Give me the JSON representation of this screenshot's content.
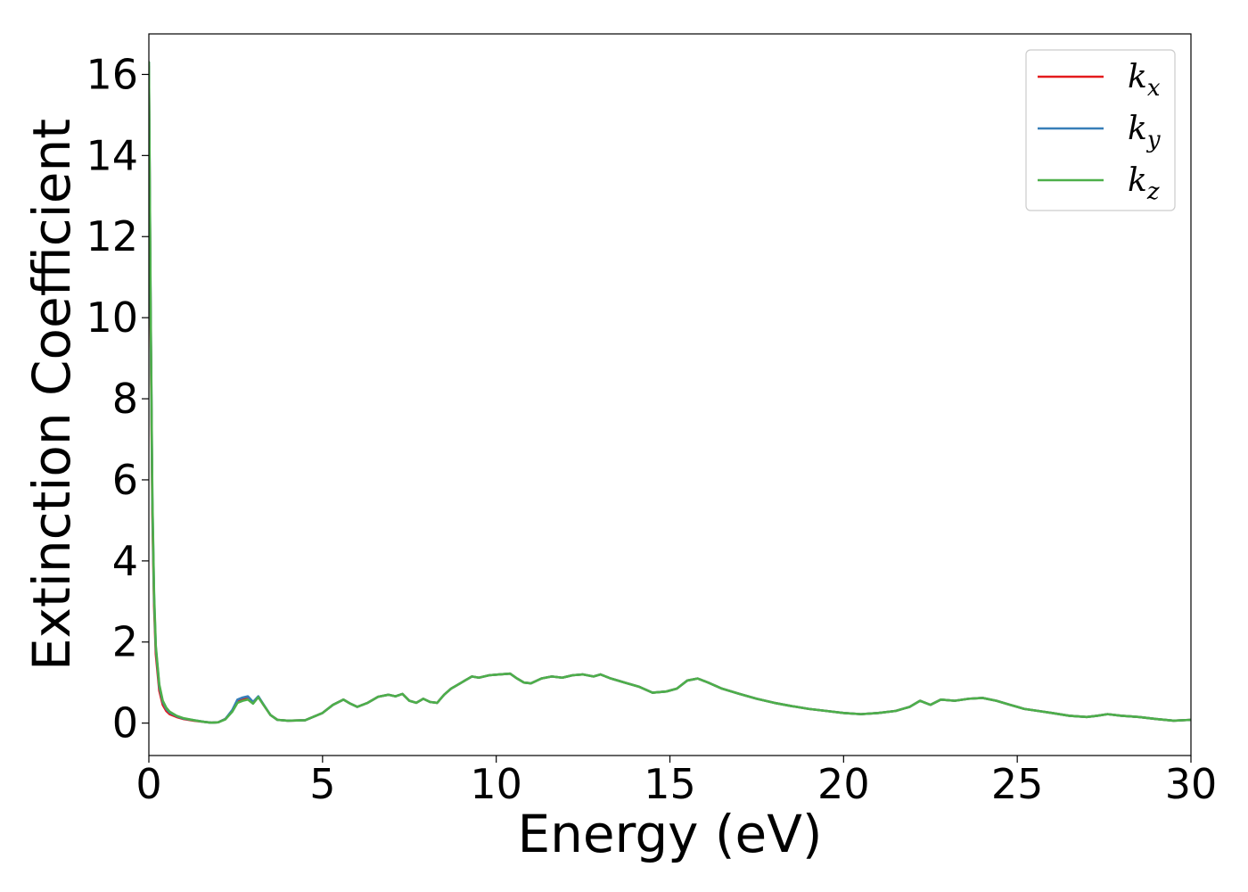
{
  "chart_data": {
    "type": "line",
    "title": "",
    "xlabel": "Energy (eV)",
    "ylabel": "Extinction Coefficient",
    "xlim": [
      0,
      30
    ],
    "ylim": [
      -0.8,
      17.0
    ],
    "xticks": [
      0,
      5,
      10,
      15,
      20,
      25,
      30
    ],
    "yticks": [
      0,
      2,
      4,
      6,
      8,
      10,
      12,
      14,
      16
    ],
    "grid": false,
    "legend_position": "top-right",
    "series": [
      {
        "name": "k",
        "subscript": "x",
        "color": "#e41a1c",
        "x": [
          0.0,
          0.05,
          0.1,
          0.15,
          0.2,
          0.3,
          0.4,
          0.5,
          0.6,
          0.8,
          1.0,
          1.3,
          1.6,
          1.8,
          2.0,
          2.2,
          2.4,
          2.55,
          2.7,
          2.85,
          3.0,
          3.15,
          3.3,
          3.5,
          3.7,
          4.0,
          4.5,
          5.0,
          5.3,
          5.6,
          5.8,
          6.0,
          6.3,
          6.6,
          6.9,
          7.1,
          7.3,
          7.5,
          7.7,
          7.9,
          8.1,
          8.3,
          8.5,
          8.7,
          8.9,
          9.1,
          9.3,
          9.5,
          9.8,
          10.1,
          10.4,
          10.6,
          10.8,
          11.0,
          11.3,
          11.6,
          11.9,
          12.2,
          12.5,
          12.8,
          13.0,
          13.3,
          13.7,
          14.1,
          14.5,
          14.9,
          15.2,
          15.5,
          15.8,
          16.1,
          16.5,
          17.0,
          17.5,
          18.0,
          18.5,
          19.0,
          19.5,
          20.0,
          20.5,
          21.0,
          21.5,
          21.9,
          22.2,
          22.5,
          22.8,
          23.2,
          23.6,
          24.0,
          24.4,
          24.8,
          25.2,
          25.6,
          26.0,
          26.5,
          27.0,
          27.3,
          27.6,
          28.0,
          28.5,
          29.0,
          29.5,
          30.0
        ],
        "y": [
          16.2,
          10.0,
          5.2,
          2.9,
          1.7,
          0.8,
          0.45,
          0.3,
          0.22,
          0.15,
          0.1,
          0.06,
          0.03,
          0.01,
          0.02,
          0.1,
          0.3,
          0.55,
          0.6,
          0.62,
          0.5,
          0.65,
          0.45,
          0.2,
          0.08,
          0.06,
          0.07,
          0.25,
          0.45,
          0.58,
          0.48,
          0.4,
          0.5,
          0.65,
          0.7,
          0.66,
          0.72,
          0.55,
          0.5,
          0.6,
          0.52,
          0.5,
          0.7,
          0.85,
          0.95,
          1.05,
          1.15,
          1.12,
          1.18,
          1.2,
          1.22,
          1.1,
          1.0,
          0.98,
          1.1,
          1.15,
          1.12,
          1.18,
          1.2,
          1.15,
          1.2,
          1.1,
          1.0,
          0.9,
          0.75,
          0.78,
          0.85,
          1.05,
          1.1,
          1.0,
          0.85,
          0.72,
          0.6,
          0.5,
          0.42,
          0.35,
          0.3,
          0.25,
          0.22,
          0.25,
          0.3,
          0.4,
          0.55,
          0.45,
          0.58,
          0.55,
          0.6,
          0.62,
          0.55,
          0.45,
          0.35,
          0.3,
          0.25,
          0.18,
          0.15,
          0.18,
          0.22,
          0.18,
          0.15,
          0.1,
          0.06,
          0.08
        ]
      },
      {
        "name": "k",
        "subscript": "y",
        "color": "#377eb8",
        "x": [
          0.0,
          0.05,
          0.1,
          0.15,
          0.2,
          0.3,
          0.4,
          0.5,
          0.6,
          0.8,
          1.0,
          1.3,
          1.6,
          1.8,
          2.0,
          2.2,
          2.4,
          2.55,
          2.7,
          2.85,
          3.0,
          3.15,
          3.3,
          3.5,
          3.7,
          4.0,
          4.5,
          5.0,
          5.3,
          5.6,
          5.8,
          6.0,
          6.3,
          6.6,
          6.9,
          7.1,
          7.3,
          7.5,
          7.7,
          7.9,
          8.1,
          8.3,
          8.5,
          8.7,
          8.9,
          9.1,
          9.3,
          9.5,
          9.8,
          10.1,
          10.4,
          10.6,
          10.8,
          11.0,
          11.3,
          11.6,
          11.9,
          12.2,
          12.5,
          12.8,
          13.0,
          13.3,
          13.7,
          14.1,
          14.5,
          14.9,
          15.2,
          15.5,
          15.8,
          16.1,
          16.5,
          17.0,
          17.5,
          18.0,
          18.5,
          19.0,
          19.5,
          20.0,
          20.5,
          21.0,
          21.5,
          21.9,
          22.2,
          22.5,
          22.8,
          23.2,
          23.6,
          24.0,
          24.4,
          24.8,
          25.2,
          25.6,
          26.0,
          26.5,
          27.0,
          27.3,
          27.6,
          28.0,
          28.5,
          29.0,
          29.5,
          30.0
        ],
        "y": [
          16.3,
          10.3,
          5.5,
          3.1,
          1.85,
          0.9,
          0.52,
          0.35,
          0.26,
          0.17,
          0.11,
          0.07,
          0.03,
          0.01,
          0.02,
          0.1,
          0.32,
          0.58,
          0.63,
          0.66,
          0.52,
          0.66,
          0.46,
          0.2,
          0.08,
          0.06,
          0.07,
          0.25,
          0.45,
          0.58,
          0.48,
          0.4,
          0.5,
          0.65,
          0.7,
          0.66,
          0.72,
          0.55,
          0.5,
          0.6,
          0.52,
          0.5,
          0.7,
          0.85,
          0.95,
          1.05,
          1.15,
          1.12,
          1.18,
          1.2,
          1.22,
          1.1,
          1.0,
          0.98,
          1.1,
          1.15,
          1.12,
          1.18,
          1.2,
          1.15,
          1.2,
          1.1,
          1.0,
          0.9,
          0.75,
          0.78,
          0.85,
          1.05,
          1.1,
          1.0,
          0.85,
          0.72,
          0.6,
          0.5,
          0.42,
          0.35,
          0.3,
          0.25,
          0.22,
          0.25,
          0.3,
          0.4,
          0.55,
          0.45,
          0.58,
          0.55,
          0.6,
          0.62,
          0.55,
          0.45,
          0.35,
          0.3,
          0.25,
          0.18,
          0.15,
          0.18,
          0.22,
          0.18,
          0.15,
          0.1,
          0.06,
          0.08
        ]
      },
      {
        "name": "k",
        "subscript": "z",
        "color": "#4daf4a",
        "x": [
          0.0,
          0.05,
          0.1,
          0.15,
          0.2,
          0.3,
          0.4,
          0.5,
          0.6,
          0.8,
          1.0,
          1.3,
          1.6,
          1.8,
          2.0,
          2.2,
          2.4,
          2.55,
          2.7,
          2.85,
          3.0,
          3.15,
          3.3,
          3.5,
          3.7,
          4.0,
          4.5,
          5.0,
          5.3,
          5.6,
          5.8,
          6.0,
          6.3,
          6.6,
          6.9,
          7.1,
          7.3,
          7.5,
          7.7,
          7.9,
          8.1,
          8.3,
          8.5,
          8.7,
          8.9,
          9.1,
          9.3,
          9.5,
          9.8,
          10.1,
          10.4,
          10.6,
          10.8,
          11.0,
          11.3,
          11.6,
          11.9,
          12.2,
          12.5,
          12.8,
          13.0,
          13.3,
          13.7,
          14.1,
          14.5,
          14.9,
          15.2,
          15.5,
          15.8,
          16.1,
          16.5,
          17.0,
          17.5,
          18.0,
          18.5,
          19.0,
          19.5,
          20.0,
          20.5,
          21.0,
          21.5,
          21.9,
          22.2,
          22.5,
          22.8,
          23.2,
          23.6,
          24.0,
          24.4,
          24.8,
          25.2,
          25.6,
          26.0,
          26.5,
          27.0,
          27.3,
          27.6,
          28.0,
          28.5,
          29.0,
          29.5,
          30.0
        ],
        "y": [
          16.3,
          10.4,
          5.6,
          3.2,
          1.9,
          0.95,
          0.55,
          0.38,
          0.28,
          0.18,
          0.12,
          0.07,
          0.03,
          0.01,
          0.02,
          0.09,
          0.28,
          0.5,
          0.55,
          0.58,
          0.48,
          0.64,
          0.45,
          0.2,
          0.08,
          0.06,
          0.07,
          0.25,
          0.45,
          0.58,
          0.48,
          0.4,
          0.5,
          0.65,
          0.7,
          0.66,
          0.72,
          0.55,
          0.5,
          0.6,
          0.52,
          0.5,
          0.7,
          0.85,
          0.95,
          1.05,
          1.15,
          1.12,
          1.18,
          1.2,
          1.22,
          1.1,
          1.0,
          0.98,
          1.1,
          1.15,
          1.12,
          1.18,
          1.2,
          1.15,
          1.2,
          1.1,
          1.0,
          0.9,
          0.75,
          0.78,
          0.85,
          1.05,
          1.1,
          1.0,
          0.85,
          0.72,
          0.6,
          0.5,
          0.42,
          0.35,
          0.3,
          0.25,
          0.22,
          0.25,
          0.3,
          0.4,
          0.55,
          0.45,
          0.58,
          0.55,
          0.6,
          0.62,
          0.55,
          0.45,
          0.35,
          0.3,
          0.25,
          0.18,
          0.15,
          0.18,
          0.22,
          0.18,
          0.15,
          0.1,
          0.06,
          0.08
        ]
      }
    ]
  }
}
